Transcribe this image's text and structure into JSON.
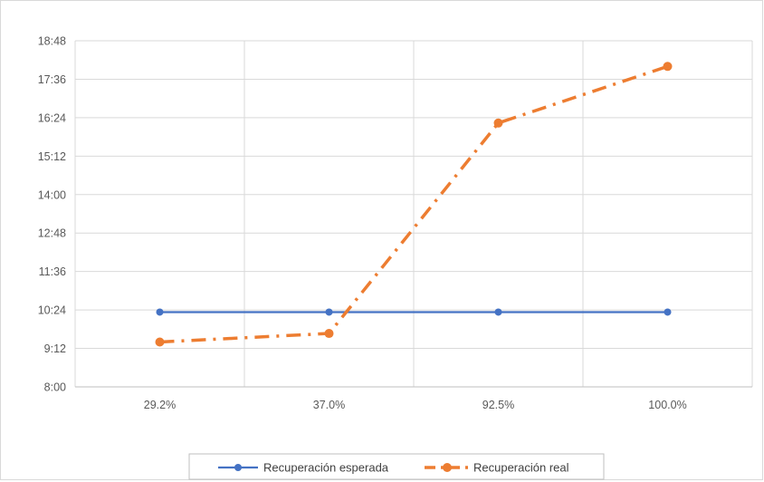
{
  "chart_data": {
    "type": "line",
    "categories": [
      "29.2%",
      "37.0%",
      "92.5%",
      "100.0%"
    ],
    "y_ticks": [
      "8:00",
      "9:12",
      "10:24",
      "11:36",
      "12:48",
      "14:00",
      "15:12",
      "16:24",
      "17:36",
      "18:48"
    ],
    "ylim": [
      "8:00",
      "18:48"
    ],
    "grid": true,
    "legend_position": "bottom",
    "series": [
      {
        "name": "Recuperación esperada",
        "values": [
          "10:20",
          "10:20",
          "10:20",
          "10:20"
        ],
        "color": "#4472C4",
        "line_style": "solid",
        "marker": "circle"
      },
      {
        "name": "Recuperación real",
        "values": [
          "9:24",
          "9:40",
          "16:14",
          "18:00"
        ],
        "color": "#ED7D31",
        "line_style": "dash-dot",
        "marker": "circle"
      }
    ]
  }
}
